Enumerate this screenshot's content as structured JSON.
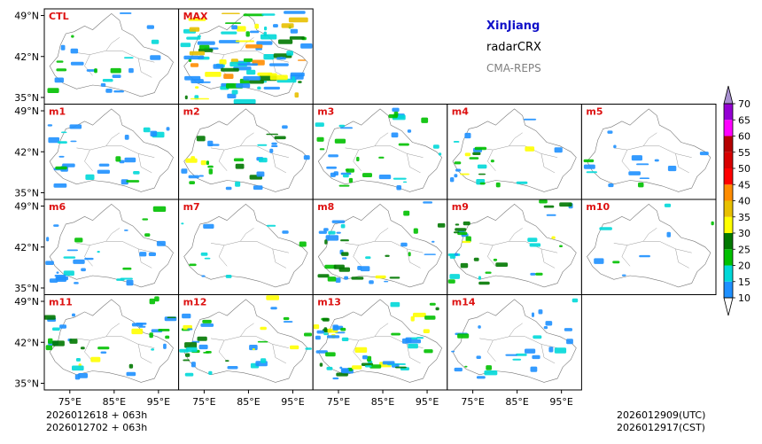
{
  "header": {
    "region": "XinJiang",
    "product": "radarCRX",
    "system": "CMA-REPS"
  },
  "footer": {
    "init_utc": "2026012618  +  063h",
    "init_cst": "2026012702  +  063h",
    "valid_utc": "2026012909(UTC)",
    "valid_cst": "2026012917(CST)"
  },
  "axes": {
    "lat_labels": [
      "49°N",
      "42°N",
      "35°N"
    ],
    "lon_labels": [
      "75°E",
      "85°E",
      "95°E"
    ]
  },
  "panels": [
    {
      "label": "CTL",
      "row": 0,
      "col": 0,
      "intensity": "low",
      "echo_cells": 22
    },
    {
      "label": "MAX",
      "row": 0,
      "col": 1,
      "intensity": "high",
      "echo_cells": 95
    },
    {
      "label": "m1",
      "row": 1,
      "col": 0,
      "intensity": "low",
      "echo_cells": 26
    },
    {
      "label": "m2",
      "row": 1,
      "col": 1,
      "intensity": "medium",
      "echo_cells": 30
    },
    {
      "label": "m3",
      "row": 1,
      "col": 2,
      "intensity": "low",
      "echo_cells": 34
    },
    {
      "label": "m4",
      "row": 1,
      "col": 3,
      "intensity": "medium",
      "echo_cells": 22
    },
    {
      "label": "m5",
      "row": 1,
      "col": 4,
      "intensity": "low",
      "echo_cells": 14
    },
    {
      "label": "m6",
      "row": 2,
      "col": 0,
      "intensity": "low",
      "echo_cells": 28
    },
    {
      "label": "m7",
      "row": 2,
      "col": 1,
      "intensity": "low",
      "echo_cells": 10
    },
    {
      "label": "m8",
      "row": 2,
      "col": 2,
      "intensity": "medium",
      "echo_cells": 36
    },
    {
      "label": "m9",
      "row": 2,
      "col": 3,
      "intensity": "medium",
      "echo_cells": 32
    },
    {
      "label": "m10",
      "row": 2,
      "col": 4,
      "intensity": "low",
      "echo_cells": 8
    },
    {
      "label": "m11",
      "row": 3,
      "col": 0,
      "intensity": "medium",
      "echo_cells": 36
    },
    {
      "label": "m12",
      "row": 3,
      "col": 1,
      "intensity": "medium",
      "echo_cells": 36
    },
    {
      "label": "m13",
      "row": 3,
      "col": 2,
      "intensity": "medium",
      "echo_cells": 56
    },
    {
      "label": "m14",
      "row": 3,
      "col": 3,
      "intensity": "low",
      "echo_cells": 26
    }
  ],
  "colorbar": {
    "unit": "dBZ",
    "levels": [
      "10",
      "15",
      "20",
      "25",
      "30",
      "35",
      "40",
      "45",
      "50",
      "55",
      "60",
      "65",
      "70"
    ],
    "colors": [
      "#ffffff",
      "#1e90ff",
      "#00d8d8",
      "#00c000",
      "#007800",
      "#ffff00",
      "#e8c000",
      "#ff8c00",
      "#ff0000",
      "#d80000",
      "#b40000",
      "#ff00ff",
      "#9400d3",
      "#a890d0"
    ]
  }
}
